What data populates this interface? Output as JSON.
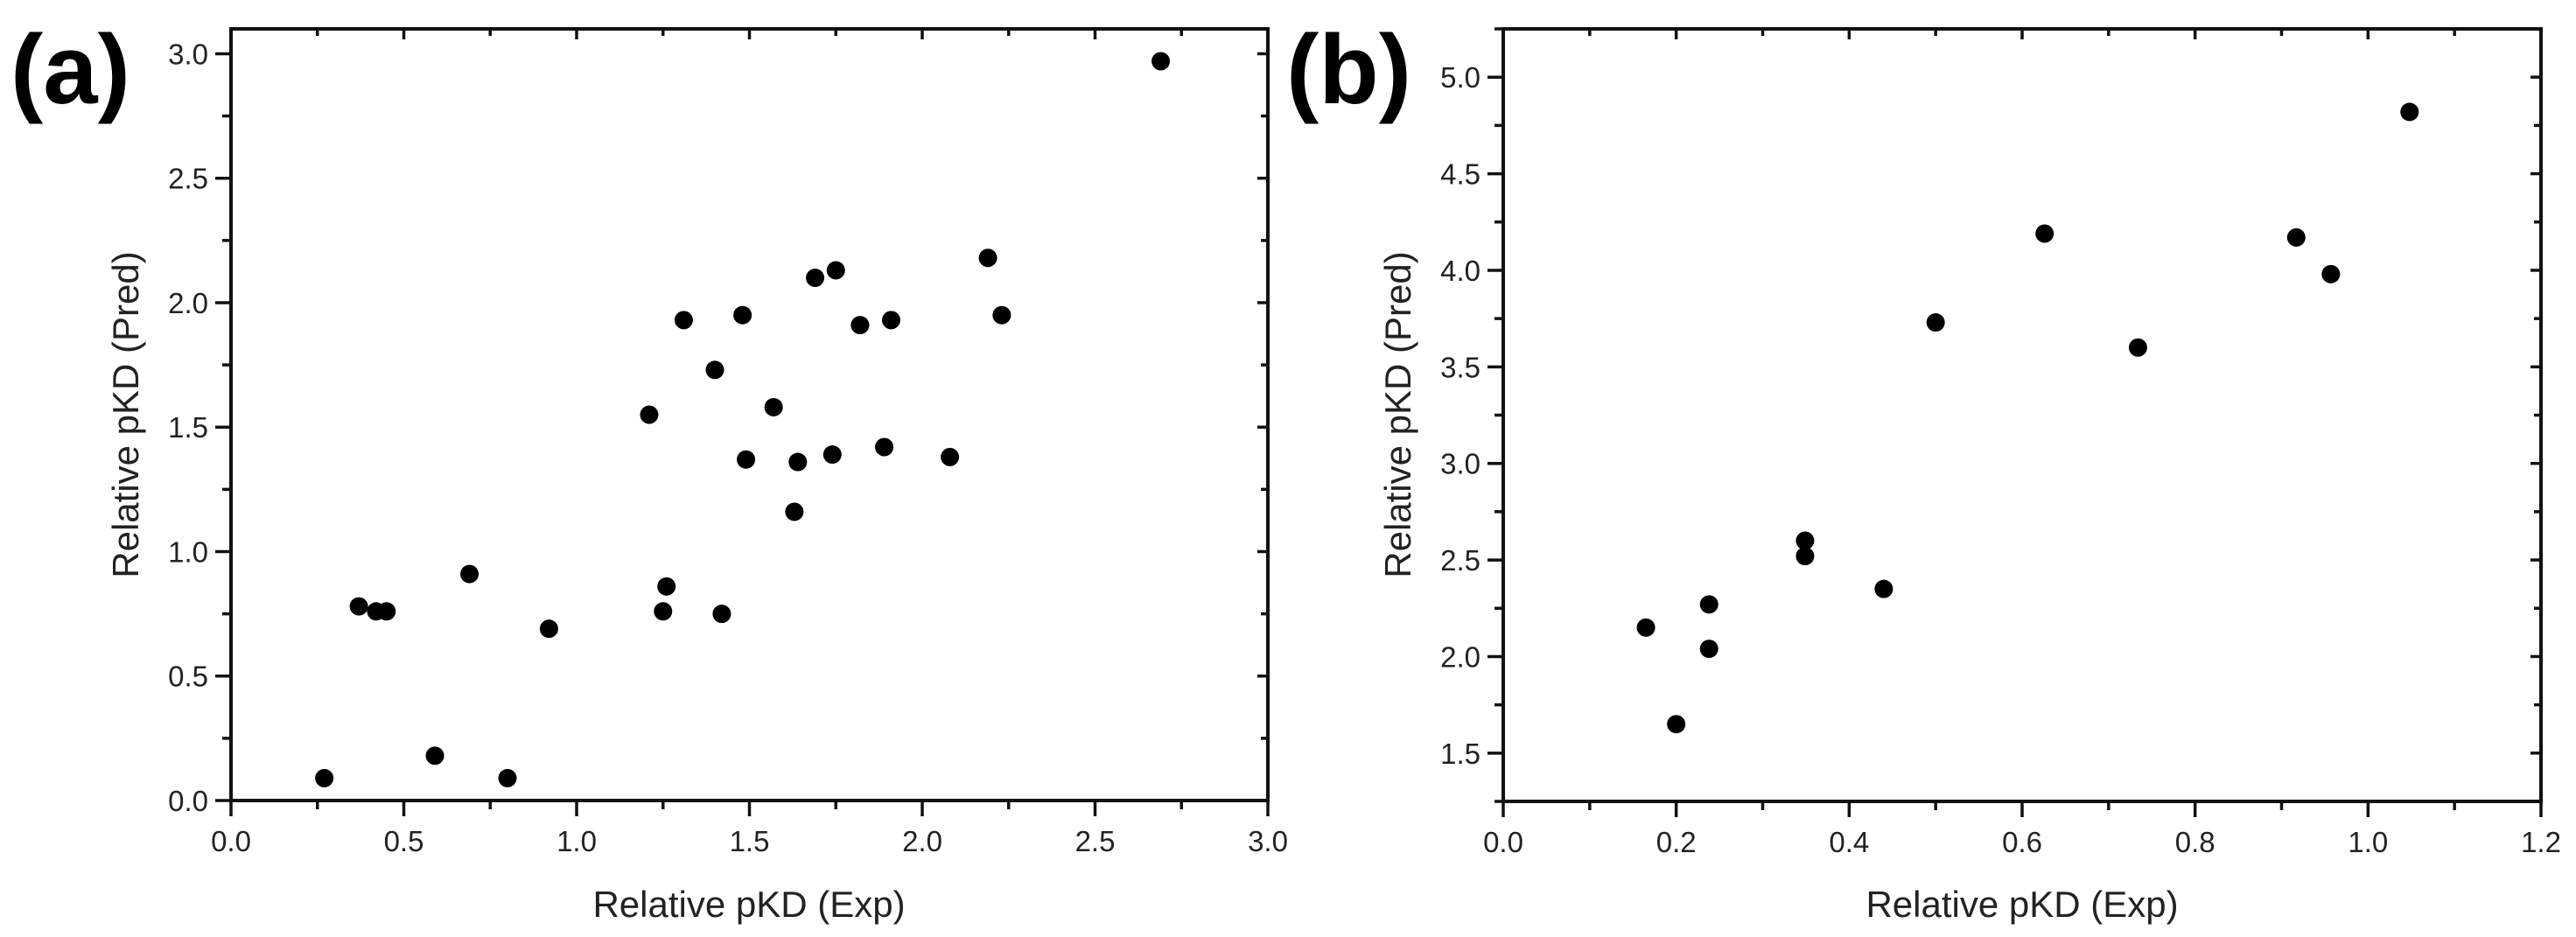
{
  "figure": {
    "panels": [
      {
        "label": "(a)",
        "xlabel": "Relative pKD (Exp)",
        "ylabel": "Relative pKD (Pred)",
        "xticks": [
          "0.0",
          "0.5",
          "1.0",
          "1.5",
          "2.0",
          "2.5",
          "3.0"
        ],
        "yticks": [
          "0.0",
          "0.5",
          "1.0",
          "1.5",
          "2.0",
          "2.5",
          "3.0"
        ]
      },
      {
        "label": "(b)",
        "xlabel": "Relative pKD (Exp)",
        "ylabel": "Relative pKD (Pred)",
        "xticks": [
          "0.0",
          "0.2",
          "0.4",
          "0.6",
          "0.8",
          "1.0",
          "1.2"
        ],
        "yticks": [
          "1.5",
          "2.0",
          "2.5",
          "3.0",
          "3.5",
          "4.0",
          "4.5",
          "5.0"
        ]
      }
    ]
  },
  "chart_data": [
    {
      "type": "scatter",
      "title": "(a)",
      "xlabel": "Relative pKD (Exp)",
      "ylabel": "Relative pKD (Pred)",
      "xlim": [
        0.0,
        3.0
      ],
      "ylim": [
        0.0,
        3.1
      ],
      "xticks": [
        0.0,
        0.5,
        1.0,
        1.5,
        2.0,
        2.5,
        3.0
      ],
      "xminor": 0.25,
      "yticks": [
        0.0,
        0.5,
        1.0,
        1.5,
        2.0,
        2.5,
        3.0
      ],
      "yminor": 0.25,
      "grid": false,
      "legend": null,
      "marker": {
        "shape": "circle",
        "color": "#000000"
      },
      "series": [
        {
          "name": "data",
          "x": [
            0.27,
            0.37,
            0.42,
            0.45,
            0.59,
            0.69,
            0.8,
            0.92,
            1.21,
            1.25,
            1.26,
            1.31,
            1.4,
            1.42,
            1.48,
            1.49,
            1.57,
            1.63,
            1.64,
            1.69,
            1.74,
            1.75,
            1.82,
            1.89,
            1.91,
            2.08,
            2.19,
            2.23,
            2.69
          ],
          "y": [
            0.09,
            0.78,
            0.76,
            0.76,
            0.18,
            0.91,
            0.09,
            0.69,
            1.55,
            0.76,
            0.86,
            1.93,
            1.73,
            0.75,
            1.95,
            1.37,
            1.58,
            1.16,
            1.36,
            2.1,
            1.39,
            2.13,
            1.91,
            1.42,
            1.93,
            1.38,
            2.18,
            1.95,
            2.97
          ]
        }
      ]
    },
    {
      "type": "scatter",
      "title": "(b)",
      "xlabel": "Relative pKD (Exp)",
      "ylabel": "Relative pKD (Pred)",
      "xlim": [
        0.0,
        1.2
      ],
      "ylim": [
        1.25,
        5.25
      ],
      "xticks": [
        0.0,
        0.2,
        0.4,
        0.6,
        0.8,
        1.0,
        1.2
      ],
      "xminor": 0.1,
      "yticks": [
        1.5,
        2.0,
        2.5,
        3.0,
        3.5,
        4.0,
        4.5,
        5.0
      ],
      "yminor": 0.25,
      "grid": false,
      "legend": null,
      "marker": {
        "shape": "circle",
        "color": "#000000"
      },
      "series": [
        {
          "name": "data",
          "x": [
            0.165,
            0.2,
            0.238,
            0.238,
            0.349,
            0.349,
            0.44,
            0.5,
            0.626,
            0.734,
            0.917,
            0.957,
            1.048
          ],
          "y": [
            2.15,
            1.65,
            2.27,
            2.04,
            2.6,
            2.52,
            2.35,
            3.73,
            4.19,
            3.6,
            4.17,
            3.98,
            4.82
          ]
        }
      ]
    }
  ]
}
